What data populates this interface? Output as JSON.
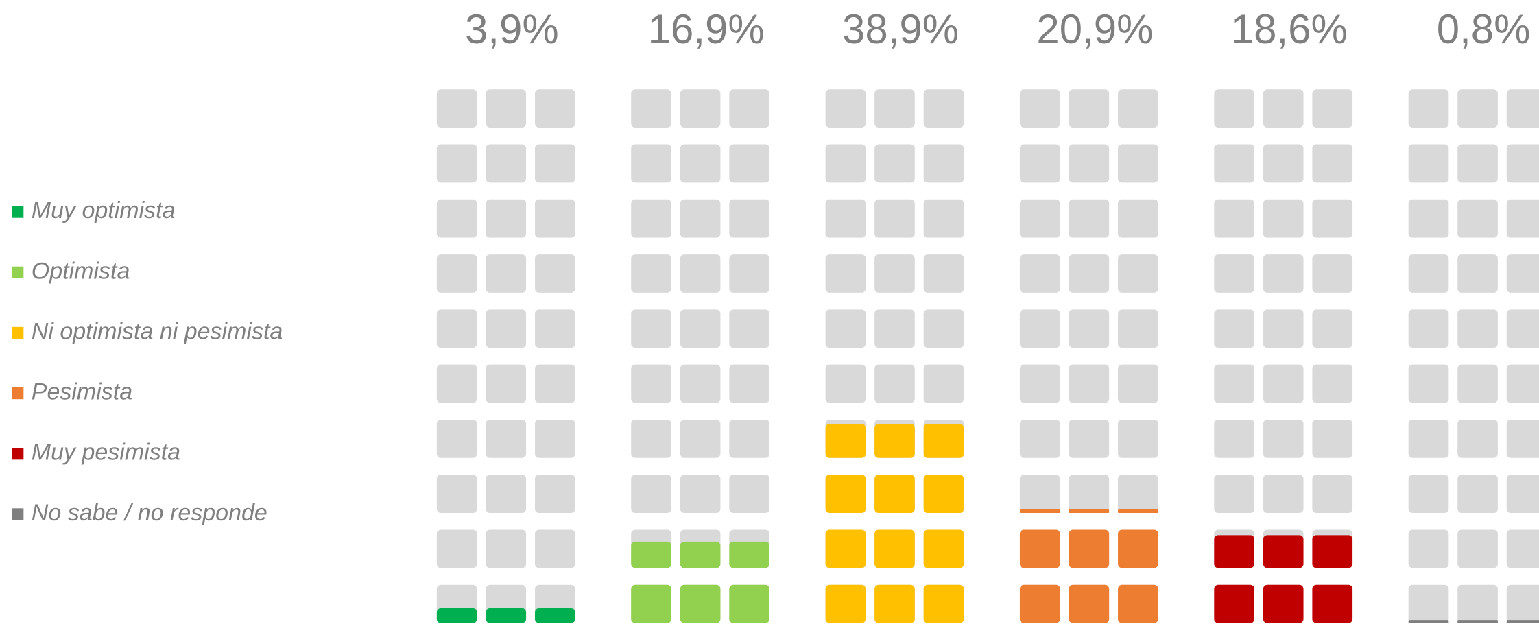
{
  "chart_data": {
    "type": "waffle",
    "categories": [
      "Muy optimista",
      "Optimista",
      "Ni optimista ni pesimista",
      "Pesimista",
      "Muy pesimista",
      "No sabe / no responde"
    ],
    "values": [
      3.9,
      16.9,
      38.9,
      20.9,
      18.6,
      0.8
    ],
    "value_labels": [
      "3,9%",
      "16,9%",
      "38,9%",
      "20,9%",
      "18,6%",
      "0,8%"
    ],
    "colors": [
      "#00b050",
      "#92d050",
      "#ffc000",
      "#ed7d31",
      "#c00000",
      "#7f7f7f"
    ],
    "ylim": [
      0,
      100
    ]
  }
}
